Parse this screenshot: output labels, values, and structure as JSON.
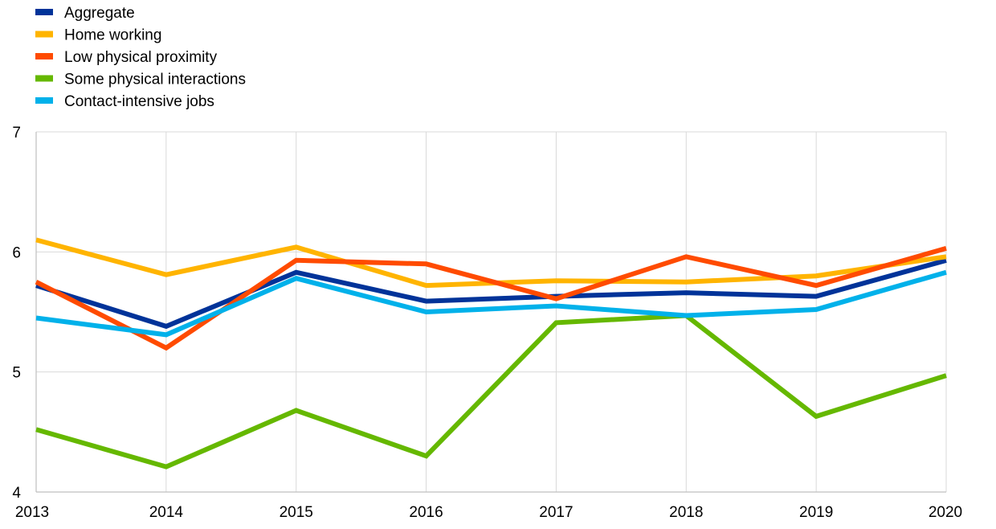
{
  "chart_data": {
    "type": "line",
    "title": "",
    "xlabel": "",
    "ylabel": "",
    "x": [
      "2013",
      "2014",
      "2015",
      "2016",
      "2017",
      "2018",
      "2019",
      "2020"
    ],
    "ylim": [
      4,
      7
    ],
    "yticks": [
      4,
      5,
      6,
      7
    ],
    "grid": true,
    "legend_position": "top-left",
    "series": [
      {
        "name": "Aggregate",
        "color": "#003399",
        "values": [
          5.72,
          5.38,
          5.83,
          5.59,
          5.63,
          5.66,
          5.63,
          5.93
        ]
      },
      {
        "name": "Home working",
        "color": "#FFB400",
        "values": [
          6.1,
          5.81,
          6.04,
          5.72,
          5.76,
          5.75,
          5.8,
          5.96
        ]
      },
      {
        "name": "Low physical proximity",
        "color": "#FF4B00",
        "values": [
          5.75,
          5.2,
          5.93,
          5.9,
          5.61,
          5.96,
          5.72,
          6.03
        ]
      },
      {
        "name": "Some physical interactions",
        "color": "#65B800",
        "values": [
          4.52,
          4.21,
          4.68,
          4.3,
          5.41,
          5.47,
          4.63,
          4.97
        ]
      },
      {
        "name": "Contact-intensive jobs",
        "color": "#00B1EA",
        "values": [
          5.45,
          5.31,
          5.78,
          5.5,
          5.55,
          5.47,
          5.52,
          5.83
        ]
      }
    ]
  }
}
